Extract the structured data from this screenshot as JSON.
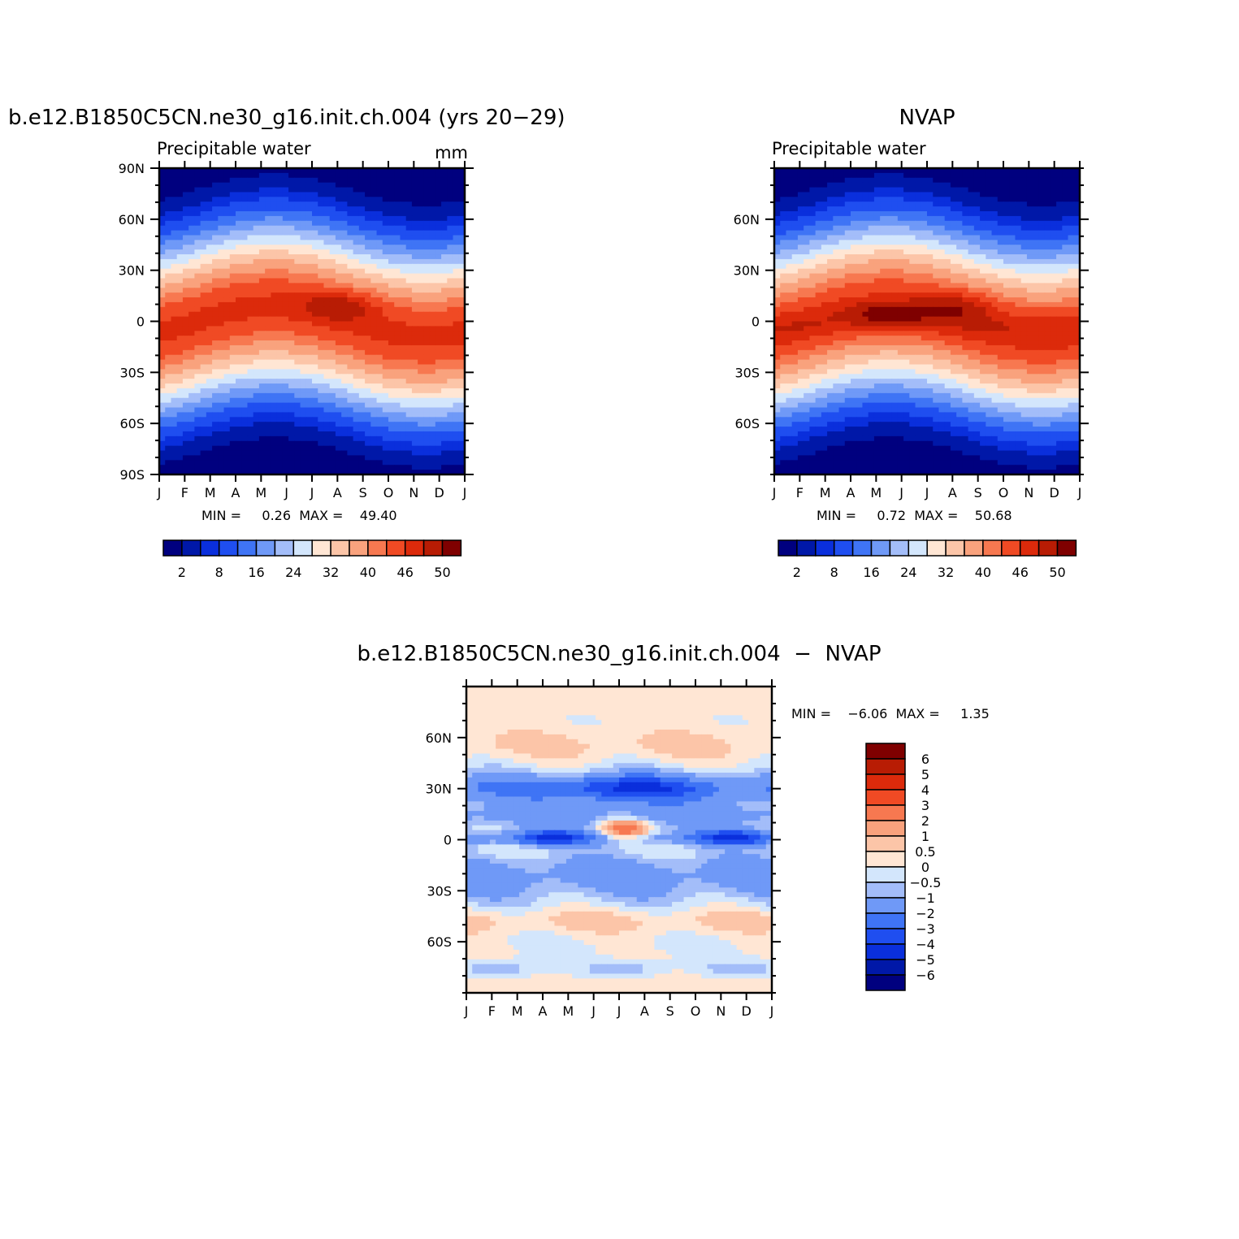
{
  "chart_data": [
    {
      "type": "heatmap",
      "title": "b.e12.B1850C5CN.ne30_g16.init.ch.004 (yrs 20−29)",
      "left_label": "Precipitable  water",
      "right_label": "mm",
      "xlabel": "",
      "ylabel": "",
      "x_ticks": [
        "J",
        "F",
        "M",
        "A",
        "M",
        "J",
        "J",
        "A",
        "S",
        "O",
        "N",
        "D",
        "J"
      ],
      "y_ticks": [
        "90N",
        "60N",
        "30N",
        "0",
        "30S",
        "60S",
        "90S"
      ],
      "ylim": [
        -90,
        90
      ],
      "stats_text": "MIN =     0.26  MAX =    49.40",
      "stats": {
        "min": 0.26,
        "max": 49.4
      },
      "levels": [
        2,
        5,
        8,
        12,
        16,
        20,
        24,
        28,
        32,
        36,
        40,
        43,
        46,
        48,
        50
      ],
      "level_labels": [
        "2",
        "8",
        "16",
        "24",
        "32",
        "40",
        "46",
        "50"
      ],
      "peak": {
        "lat": 10,
        "month": 7.3,
        "value": 49.4
      },
      "grid": false
    },
    {
      "type": "heatmap",
      "title": "NVAP",
      "left_label": "Precipitable  water",
      "right_label": "",
      "xlabel": "",
      "ylabel": "",
      "x_ticks": [
        "J",
        "F",
        "M",
        "A",
        "M",
        "J",
        "J",
        "A",
        "S",
        "O",
        "N",
        "D",
        "J"
      ],
      "y_ticks": [
        "60N",
        "30N",
        "0",
        "30S",
        "60S"
      ],
      "ylim": [
        -90,
        90
      ],
      "stats_text": "MIN =     0.72  MAX =    50.68",
      "stats": {
        "min": 0.72,
        "max": 50.68
      },
      "levels": [
        2,
        5,
        8,
        12,
        16,
        20,
        24,
        28,
        32,
        36,
        40,
        43,
        46,
        48,
        50
      ],
      "level_labels": [
        "2",
        "8",
        "16",
        "24",
        "32",
        "40",
        "46",
        "50"
      ],
      "peak": {
        "lat": 5,
        "month": 4.5,
        "value": 50.68
      },
      "grid": false
    },
    {
      "type": "heatmap",
      "title": "b.e12.B1850C5CN.ne30_g16.init.ch.004  −  NVAP",
      "xlabel": "",
      "ylabel": "",
      "x_ticks": [
        "J",
        "F",
        "M",
        "A",
        "M",
        "J",
        "J",
        "A",
        "S",
        "O",
        "N",
        "D",
        "J"
      ],
      "y_ticks": [
        "60N",
        "30N",
        "0",
        "30S",
        "60S"
      ],
      "ylim": [
        -90,
        90
      ],
      "stats_text": "MIN =    −6.06  MAX =     1.35",
      "stats": {
        "min": -6.06,
        "max": 1.35
      },
      "levels": [
        -6,
        -5,
        -4,
        -3,
        -2,
        -1,
        -0.5,
        0,
        0.5,
        1,
        2,
        3,
        4,
        5,
        6
      ],
      "level_labels": [
        "6",
        "5",
        "4",
        "3",
        "2",
        "1",
        "0.5",
        "0",
        "−0.5",
        "−1",
        "−2",
        "−3",
        "−4",
        "−5",
        "−6"
      ],
      "grid": false
    }
  ],
  "palette": [
    "#00007f",
    "#0018a8",
    "#0a2fdc",
    "#1f4ef0",
    "#3f74f5",
    "#6f99f7",
    "#a3bdf9",
    "#d3e6fc",
    "#ffe6d4",
    "#fcc5a8",
    "#f9a27d",
    "#f77850",
    "#f04a24",
    "#dc2a0b",
    "#b81c04",
    "#7f0000"
  ]
}
